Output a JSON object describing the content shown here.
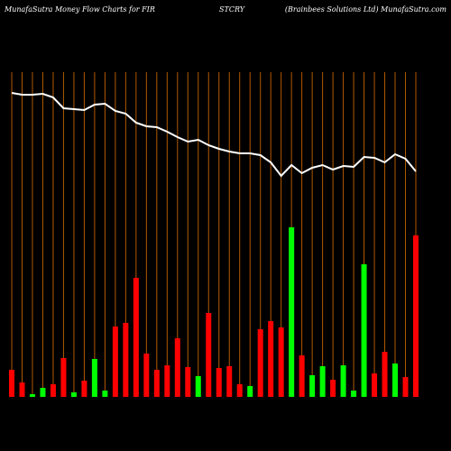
{
  "chart_data": {
    "type": "bar",
    "title_left": "MunafaSutra  Money Flow  Charts for FIR",
    "title_center": "STCRY",
    "title_right": "(Brainbees Solutions Ltd) MunafaSutra.com",
    "ylim": [
      0,
      360
    ],
    "grid_color": "#b35900",
    "bars": {
      "values": [
        30,
        16,
        3,
        10,
        14,
        43,
        5,
        18,
        42,
        7,
        78,
        82,
        132,
        48,
        30,
        35,
        65,
        33,
        23,
        93,
        32,
        34,
        14,
        12,
        75,
        84,
        77,
        188,
        46,
        24,
        34,
        19,
        35,
        7,
        147,
        26,
        50,
        37,
        22,
        179
      ],
      "colors": [
        "#ff0000",
        "#ff0000",
        "#00ff00",
        "#00ff00",
        "#ff0000",
        "#ff0000",
        "#00ff00",
        "#ff0000",
        "#00ff00",
        "#00ff00",
        "#ff0000",
        "#ff0000",
        "#ff0000",
        "#ff0000",
        "#ff0000",
        "#ff0000",
        "#ff0000",
        "#ff0000",
        "#00ff00",
        "#ff0000",
        "#ff0000",
        "#ff0000",
        "#ff0000",
        "#00ff00",
        "#ff0000",
        "#ff0000",
        "#ff0000",
        "#00ff00",
        "#ff0000",
        "#00ff00",
        "#00ff00",
        "#ff0000",
        "#00ff00",
        "#00ff00",
        "#00ff00",
        "#ff0000",
        "#ff0000",
        "#00ff00",
        "#ff0000",
        "#ff0000"
      ]
    },
    "line": {
      "color": "#ffffff",
      "values": [
        337,
        335,
        335,
        336,
        332,
        320,
        319,
        318,
        324,
        325,
        317,
        314,
        304,
        300,
        299,
        294,
        288,
        283,
        285,
        279,
        275,
        272,
        270,
        270,
        268,
        260,
        245,
        257,
        248,
        254,
        257,
        252,
        256,
        255,
        266,
        265,
        260,
        269,
        264,
        250
      ]
    }
  }
}
